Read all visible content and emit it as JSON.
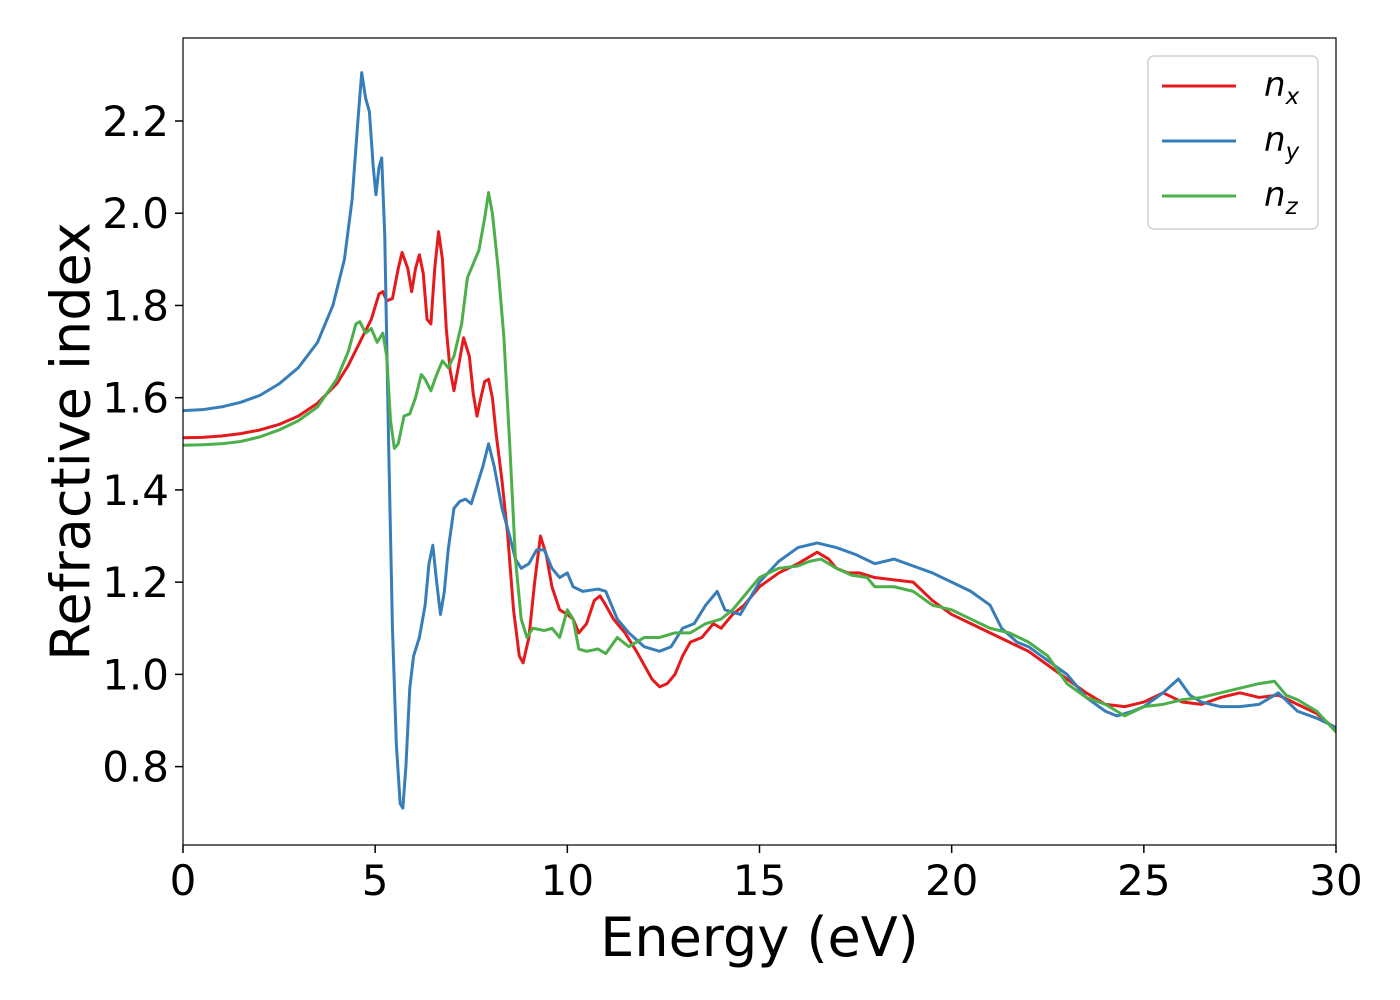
{
  "chart_data": {
    "type": "line",
    "title": "",
    "xlabel": "Energy (eV)",
    "ylabel": "Refractive index",
    "xlim": [
      0,
      30
    ],
    "ylim": [
      0.63,
      2.38
    ],
    "xticks": [
      "0",
      "5",
      "10",
      "15",
      "20",
      "25",
      "30"
    ],
    "yticks": [
      "0.8",
      "1.0",
      "1.2",
      "1.4",
      "1.6",
      "1.8",
      "2.0",
      "2.2"
    ],
    "grid": false,
    "legend_position": "top-right",
    "series": [
      {
        "name": "n",
        "subscript": "x",
        "color": "#e41a1c",
        "points": [
          [
            0,
            1.513
          ],
          [
            0.5,
            1.514
          ],
          [
            1,
            1.517
          ],
          [
            1.5,
            1.522
          ],
          [
            2,
            1.53
          ],
          [
            2.5,
            1.542
          ],
          [
            3,
            1.56
          ],
          [
            3.5,
            1.588
          ],
          [
            4,
            1.63
          ],
          [
            4.3,
            1.67
          ],
          [
            4.6,
            1.72
          ],
          [
            4.9,
            1.77
          ],
          [
            5.1,
            1.825
          ],
          [
            5.2,
            1.83
          ],
          [
            5.3,
            1.81
          ],
          [
            5.45,
            1.815
          ],
          [
            5.6,
            1.88
          ],
          [
            5.7,
            1.915
          ],
          [
            5.85,
            1.88
          ],
          [
            5.95,
            1.83
          ],
          [
            6.05,
            1.88
          ],
          [
            6.15,
            1.91
          ],
          [
            6.25,
            1.87
          ],
          [
            6.35,
            1.77
          ],
          [
            6.45,
            1.76
          ],
          [
            6.55,
            1.88
          ],
          [
            6.65,
            1.96
          ],
          [
            6.75,
            1.9
          ],
          [
            6.85,
            1.75
          ],
          [
            6.95,
            1.66
          ],
          [
            7.05,
            1.615
          ],
          [
            7.15,
            1.66
          ],
          [
            7.3,
            1.73
          ],
          [
            7.45,
            1.69
          ],
          [
            7.55,
            1.61
          ],
          [
            7.65,
            1.56
          ],
          [
            7.75,
            1.6
          ],
          [
            7.85,
            1.635
          ],
          [
            7.95,
            1.64
          ],
          [
            8.05,
            1.6
          ],
          [
            8.15,
            1.52
          ],
          [
            8.3,
            1.42
          ],
          [
            8.45,
            1.3
          ],
          [
            8.6,
            1.14
          ],
          [
            8.75,
            1.04
          ],
          [
            8.85,
            1.025
          ],
          [
            9,
            1.08
          ],
          [
            9.15,
            1.2
          ],
          [
            9.3,
            1.3
          ],
          [
            9.45,
            1.26
          ],
          [
            9.6,
            1.19
          ],
          [
            9.8,
            1.14
          ],
          [
            10,
            1.13
          ],
          [
            10.15,
            1.12
          ],
          [
            10.3,
            1.09
          ],
          [
            10.5,
            1.11
          ],
          [
            10.7,
            1.16
          ],
          [
            10.85,
            1.17
          ],
          [
            11,
            1.15
          ],
          [
            11.2,
            1.12
          ],
          [
            11.5,
            1.09
          ],
          [
            11.8,
            1.05
          ],
          [
            12,
            1.02
          ],
          [
            12.2,
            0.99
          ],
          [
            12.4,
            0.973
          ],
          [
            12.6,
            0.98
          ],
          [
            12.8,
            1.0
          ],
          [
            13,
            1.04
          ],
          [
            13.2,
            1.07
          ],
          [
            13.5,
            1.08
          ],
          [
            13.8,
            1.11
          ],
          [
            14,
            1.1
          ],
          [
            14.3,
            1.13
          ],
          [
            14.6,
            1.15
          ],
          [
            15,
            1.19
          ],
          [
            15.5,
            1.22
          ],
          [
            16,
            1.24
          ],
          [
            16.3,
            1.255
          ],
          [
            16.5,
            1.265
          ],
          [
            16.8,
            1.25
          ],
          [
            17,
            1.23
          ],
          [
            17.3,
            1.22
          ],
          [
            17.6,
            1.22
          ],
          [
            18,
            1.21
          ],
          [
            18.5,
            1.205
          ],
          [
            19,
            1.2
          ],
          [
            19.5,
            1.16
          ],
          [
            20,
            1.13
          ],
          [
            20.5,
            1.11
          ],
          [
            21,
            1.09
          ],
          [
            21.5,
            1.07
          ],
          [
            22,
            1.05
          ],
          [
            22.5,
            1.02
          ],
          [
            23,
            0.99
          ],
          [
            23.5,
            0.96
          ],
          [
            24,
            0.935
          ],
          [
            24.5,
            0.93
          ],
          [
            25,
            0.94
          ],
          [
            25.5,
            0.96
          ],
          [
            26,
            0.94
          ],
          [
            26.5,
            0.935
          ],
          [
            27,
            0.95
          ],
          [
            27.5,
            0.96
          ],
          [
            28,
            0.95
          ],
          [
            28.5,
            0.955
          ],
          [
            29,
            0.935
          ],
          [
            29.5,
            0.915
          ],
          [
            30,
            0.88
          ]
        ]
      },
      {
        "name": "n",
        "subscript": "y",
        "color": "#377eb8",
        "points": [
          [
            0,
            1.572
          ],
          [
            0.5,
            1.574
          ],
          [
            1,
            1.58
          ],
          [
            1.5,
            1.59
          ],
          [
            2,
            1.605
          ],
          [
            2.5,
            1.63
          ],
          [
            3,
            1.665
          ],
          [
            3.5,
            1.72
          ],
          [
            3.9,
            1.8
          ],
          [
            4.2,
            1.9
          ],
          [
            4.4,
            2.03
          ],
          [
            4.55,
            2.2
          ],
          [
            4.65,
            2.305
          ],
          [
            4.75,
            2.25
          ],
          [
            4.85,
            2.22
          ],
          [
            4.95,
            2.1
          ],
          [
            5.02,
            2.04
          ],
          [
            5.1,
            2.1
          ],
          [
            5.17,
            2.12
          ],
          [
            5.25,
            1.95
          ],
          [
            5.35,
            1.5
          ],
          [
            5.45,
            1.1
          ],
          [
            5.55,
            0.85
          ],
          [
            5.65,
            0.72
          ],
          [
            5.72,
            0.71
          ],
          [
            5.8,
            0.8
          ],
          [
            5.9,
            0.97
          ],
          [
            6,
            1.04
          ],
          [
            6.15,
            1.08
          ],
          [
            6.3,
            1.15
          ],
          [
            6.4,
            1.24
          ],
          [
            6.5,
            1.28
          ],
          [
            6.6,
            1.2
          ],
          [
            6.7,
            1.13
          ],
          [
            6.8,
            1.18
          ],
          [
            6.9,
            1.27
          ],
          [
            7.05,
            1.36
          ],
          [
            7.2,
            1.375
          ],
          [
            7.35,
            1.38
          ],
          [
            7.5,
            1.37
          ],
          [
            7.65,
            1.41
          ],
          [
            7.8,
            1.45
          ],
          [
            7.95,
            1.5
          ],
          [
            8.1,
            1.45
          ],
          [
            8.3,
            1.36
          ],
          [
            8.5,
            1.3
          ],
          [
            8.65,
            1.25
          ],
          [
            8.8,
            1.23
          ],
          [
            9,
            1.24
          ],
          [
            9.2,
            1.27
          ],
          [
            9.4,
            1.27
          ],
          [
            9.6,
            1.23
          ],
          [
            9.8,
            1.21
          ],
          [
            10,
            1.22
          ],
          [
            10.15,
            1.19
          ],
          [
            10.4,
            1.18
          ],
          [
            10.8,
            1.185
          ],
          [
            11,
            1.18
          ],
          [
            11.3,
            1.12
          ],
          [
            11.6,
            1.09
          ],
          [
            12,
            1.06
          ],
          [
            12.4,
            1.05
          ],
          [
            12.7,
            1.06
          ],
          [
            13,
            1.1
          ],
          [
            13.3,
            1.11
          ],
          [
            13.6,
            1.15
          ],
          [
            13.9,
            1.18
          ],
          [
            14.1,
            1.14
          ],
          [
            14.5,
            1.13
          ],
          [
            15,
            1.2
          ],
          [
            15.5,
            1.245
          ],
          [
            16,
            1.275
          ],
          [
            16.5,
            1.285
          ],
          [
            17,
            1.275
          ],
          [
            17.5,
            1.26
          ],
          [
            18,
            1.24
          ],
          [
            18.5,
            1.25
          ],
          [
            19,
            1.235
          ],
          [
            19.5,
            1.22
          ],
          [
            20,
            1.2
          ],
          [
            20.5,
            1.18
          ],
          [
            21,
            1.15
          ],
          [
            21.3,
            1.1
          ],
          [
            21.7,
            1.07
          ],
          [
            22,
            1.06
          ],
          [
            22.5,
            1.03
          ],
          [
            23,
            1.0
          ],
          [
            23.5,
            0.95
          ],
          [
            24,
            0.92
          ],
          [
            24.3,
            0.91
          ],
          [
            24.7,
            0.92
          ],
          [
            25,
            0.93
          ],
          [
            25.5,
            0.96
          ],
          [
            25.9,
            0.99
          ],
          [
            26.2,
            0.955
          ],
          [
            26.5,
            0.94
          ],
          [
            27,
            0.93
          ],
          [
            27.5,
            0.93
          ],
          [
            28,
            0.935
          ],
          [
            28.5,
            0.96
          ],
          [
            29,
            0.92
          ],
          [
            29.5,
            0.905
          ],
          [
            30,
            0.885
          ]
        ]
      },
      {
        "name": "n",
        "subscript": "z",
        "color": "#4daf4a",
        "points": [
          [
            0,
            1.497
          ],
          [
            0.5,
            1.498
          ],
          [
            1,
            1.5
          ],
          [
            1.5,
            1.505
          ],
          [
            2,
            1.515
          ],
          [
            2.5,
            1.53
          ],
          [
            3,
            1.55
          ],
          [
            3.5,
            1.58
          ],
          [
            4,
            1.64
          ],
          [
            4.3,
            1.7
          ],
          [
            4.5,
            1.76
          ],
          [
            4.6,
            1.765
          ],
          [
            4.75,
            1.74
          ],
          [
            4.9,
            1.75
          ],
          [
            5.05,
            1.72
          ],
          [
            5.2,
            1.74
          ],
          [
            5.3,
            1.69
          ],
          [
            5.4,
            1.55
          ],
          [
            5.5,
            1.49
          ],
          [
            5.6,
            1.5
          ],
          [
            5.75,
            1.56
          ],
          [
            5.9,
            1.565
          ],
          [
            6.05,
            1.6
          ],
          [
            6.2,
            1.65
          ],
          [
            6.3,
            1.64
          ],
          [
            6.45,
            1.615
          ],
          [
            6.6,
            1.65
          ],
          [
            6.75,
            1.68
          ],
          [
            6.9,
            1.665
          ],
          [
            7.05,
            1.69
          ],
          [
            7.25,
            1.76
          ],
          [
            7.4,
            1.86
          ],
          [
            7.55,
            1.89
          ],
          [
            7.7,
            1.92
          ],
          [
            7.85,
            1.99
          ],
          [
            7.95,
            2.045
          ],
          [
            8.05,
            2.0
          ],
          [
            8.2,
            1.88
          ],
          [
            8.35,
            1.73
          ],
          [
            8.5,
            1.5
          ],
          [
            8.65,
            1.25
          ],
          [
            8.8,
            1.12
          ],
          [
            8.95,
            1.08
          ],
          [
            9.1,
            1.1
          ],
          [
            9.4,
            1.095
          ],
          [
            9.6,
            1.1
          ],
          [
            9.8,
            1.08
          ],
          [
            10,
            1.14
          ],
          [
            10.15,
            1.12
          ],
          [
            10.3,
            1.055
          ],
          [
            10.5,
            1.05
          ],
          [
            10.8,
            1.055
          ],
          [
            11,
            1.045
          ],
          [
            11.3,
            1.08
          ],
          [
            11.6,
            1.06
          ],
          [
            12,
            1.08
          ],
          [
            12.4,
            1.08
          ],
          [
            12.8,
            1.09
          ],
          [
            13.2,
            1.09
          ],
          [
            13.6,
            1.11
          ],
          [
            14,
            1.12
          ],
          [
            14.3,
            1.14
          ],
          [
            14.6,
            1.17
          ],
          [
            15,
            1.21
          ],
          [
            15.5,
            1.23
          ],
          [
            16,
            1.235
          ],
          [
            16.3,
            1.245
          ],
          [
            16.6,
            1.25
          ],
          [
            17,
            1.23
          ],
          [
            17.4,
            1.215
          ],
          [
            17.8,
            1.21
          ],
          [
            18,
            1.19
          ],
          [
            18.5,
            1.19
          ],
          [
            19,
            1.18
          ],
          [
            19.5,
            1.15
          ],
          [
            20,
            1.14
          ],
          [
            20.5,
            1.12
          ],
          [
            21,
            1.1
          ],
          [
            21.5,
            1.09
          ],
          [
            22,
            1.07
          ],
          [
            22.5,
            1.04
          ],
          [
            23,
            0.98
          ],
          [
            23.5,
            0.95
          ],
          [
            24,
            0.935
          ],
          [
            24.5,
            0.91
          ],
          [
            25,
            0.93
          ],
          [
            25.5,
            0.935
          ],
          [
            26,
            0.945
          ],
          [
            26.5,
            0.95
          ],
          [
            27,
            0.96
          ],
          [
            27.5,
            0.97
          ],
          [
            28,
            0.98
          ],
          [
            28.4,
            0.985
          ],
          [
            28.7,
            0.955
          ],
          [
            29,
            0.945
          ],
          [
            29.5,
            0.92
          ],
          [
            30,
            0.875
          ]
        ]
      }
    ]
  }
}
